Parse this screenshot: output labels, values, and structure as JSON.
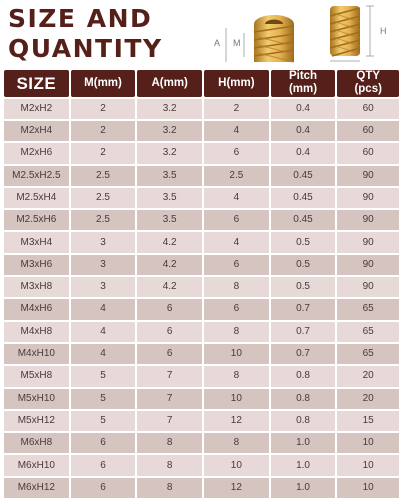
{
  "title": {
    "line1": "SIZE AND",
    "line2": "QUANTITY"
  },
  "illustration": {
    "label_a": "A",
    "label_m": "M",
    "label_h": "H"
  },
  "table": {
    "headers": [
      "SIZE",
      "M(mm)",
      "A(mm)",
      "H(mm)",
      "Pitch\n(mm)",
      "QTY\n(pcs)"
    ],
    "rows": [
      [
        "M2xH2",
        "2",
        "3.2",
        "2",
        "0.4",
        "60"
      ],
      [
        "M2xH4",
        "2",
        "3.2",
        "4",
        "0.4",
        "60"
      ],
      [
        "M2xH6",
        "2",
        "3.2",
        "6",
        "0.4",
        "60"
      ],
      [
        "M2.5xH2.5",
        "2.5",
        "3.5",
        "2.5",
        "0.45",
        "90"
      ],
      [
        "M2.5xH4",
        "2.5",
        "3.5",
        "4",
        "0.45",
        "90"
      ],
      [
        "M2.5xH6",
        "2.5",
        "3.5",
        "6",
        "0.45",
        "90"
      ],
      [
        "M3xH4",
        "3",
        "4.2",
        "4",
        "0.5",
        "90"
      ],
      [
        "M3xH6",
        "3",
        "4.2",
        "6",
        "0.5",
        "90"
      ],
      [
        "M3xH8",
        "3",
        "4.2",
        "8",
        "0.5",
        "90"
      ],
      [
        "M4xH6",
        "4",
        "6",
        "6",
        "0.7",
        "65"
      ],
      [
        "M4xH8",
        "4",
        "6",
        "8",
        "0.7",
        "65"
      ],
      [
        "M4xH10",
        "4",
        "6",
        "10",
        "0.7",
        "65"
      ],
      [
        "M5xH8",
        "5",
        "7",
        "8",
        "0.8",
        "20"
      ],
      [
        "M5xH10",
        "5",
        "7",
        "10",
        "0.8",
        "20"
      ],
      [
        "M5xH12",
        "5",
        "7",
        "12",
        "0.8",
        "15"
      ],
      [
        "M6xH8",
        "6",
        "8",
        "8",
        "1.0",
        "10"
      ],
      [
        "M6xH10",
        "6",
        "8",
        "10",
        "1.0",
        "10"
      ],
      [
        "M6xH12",
        "6",
        "8",
        "12",
        "1.0",
        "10"
      ]
    ]
  },
  "colors": {
    "header_bg": "#55201a",
    "title_text": "#55201a",
    "row_light": "#e6d9d7",
    "row_dark": "#d6c4c1",
    "brass": "#d9a441"
  }
}
